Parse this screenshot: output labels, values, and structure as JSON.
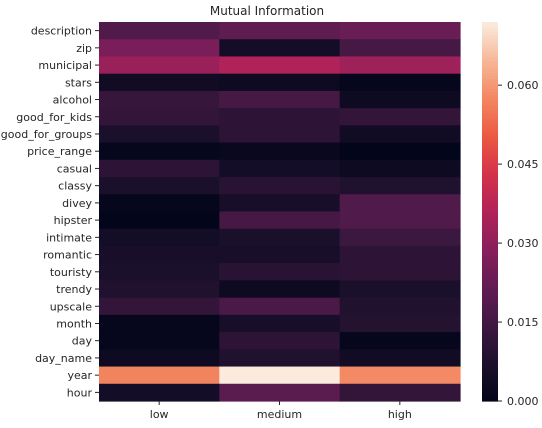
{
  "chart_data": {
    "type": "heatmap",
    "title": "Mutual Information",
    "xlabel": "",
    "ylabel": "",
    "columns": [
      "low",
      "medium",
      "high"
    ],
    "rows": [
      "description",
      "zip",
      "municipal",
      "stars",
      "alcohol",
      "good_for_kids",
      "good_for_groups",
      "price_range",
      "casual",
      "classy",
      "divey",
      "hipster",
      "intimate",
      "romantic",
      "touristy",
      "trendy",
      "upscale",
      "month",
      "day",
      "day_name",
      "year",
      "hour"
    ],
    "values": [
      [
        0.018,
        0.021,
        0.023
      ],
      [
        0.026,
        0.005,
        0.016
      ],
      [
        0.032,
        0.036,
        0.033
      ],
      [
        0.004,
        0.003,
        0.001
      ],
      [
        0.013,
        0.016,
        0.003
      ],
      [
        0.012,
        0.011,
        0.012
      ],
      [
        0.007,
        0.011,
        0.004
      ],
      [
        0.001,
        0.002,
        0.0
      ],
      [
        0.011,
        0.005,
        0.003
      ],
      [
        0.007,
        0.01,
        0.008
      ],
      [
        0.001,
        0.006,
        0.018
      ],
      [
        0.0,
        0.016,
        0.018
      ],
      [
        0.005,
        0.007,
        0.014
      ],
      [
        0.006,
        0.006,
        0.011
      ],
      [
        0.007,
        0.01,
        0.011
      ],
      [
        0.008,
        0.003,
        0.007
      ],
      [
        0.012,
        0.017,
        0.008
      ],
      [
        0.001,
        0.006,
        0.009
      ],
      [
        0.001,
        0.011,
        0.001
      ],
      [
        0.003,
        0.008,
        0.004
      ],
      [
        0.057,
        0.072,
        0.058
      ],
      [
        0.005,
        0.02,
        0.012
      ]
    ],
    "colorbar": {
      "min": 0.0,
      "max": 0.072,
      "ticks": [
        "0.000",
        "0.015",
        "0.030",
        "0.045",
        "0.060"
      ],
      "tick_values": [
        0.0,
        0.015,
        0.03,
        0.045,
        0.06
      ],
      "colormap": "rocket"
    }
  }
}
